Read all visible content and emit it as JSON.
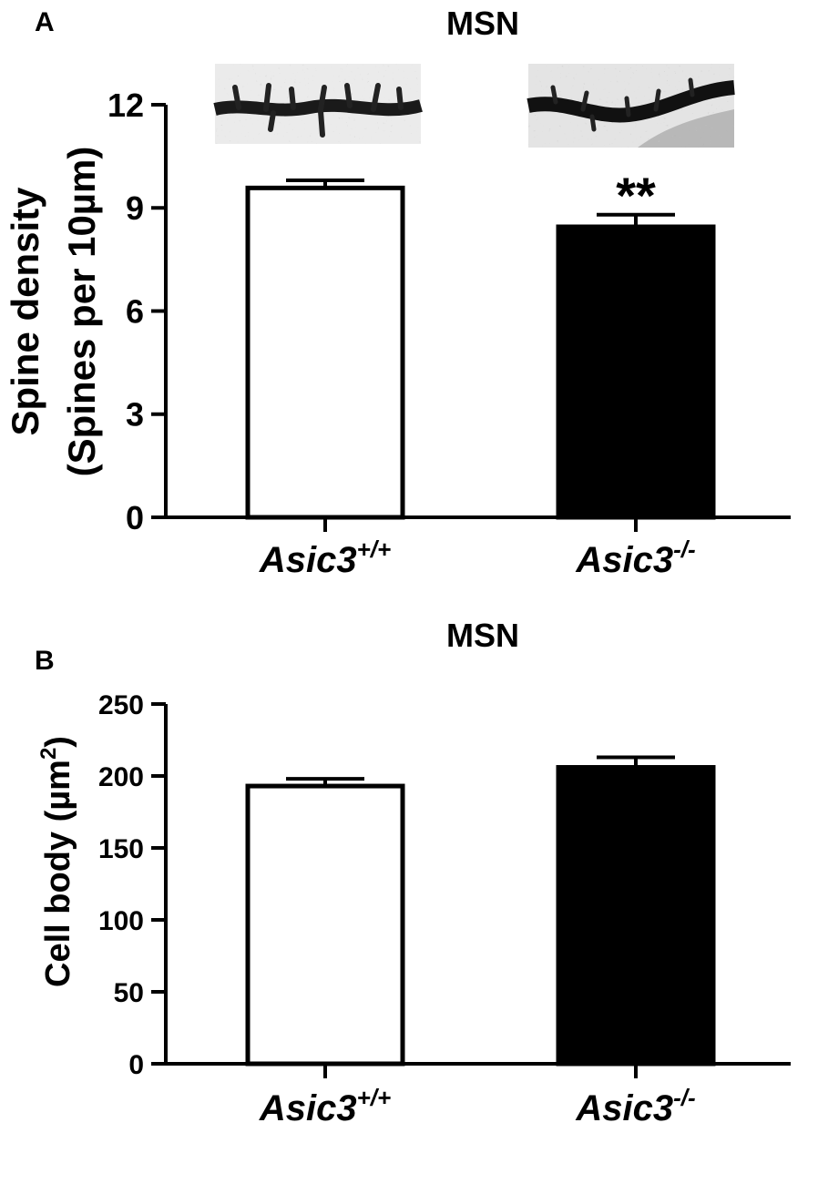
{
  "chart_data": [
    {
      "type": "bar",
      "panel_label": "A",
      "title": "MSN",
      "ylabel_line1": "Spine density",
      "ylabel_line2": "(Spines per 10µm)",
      "ylim": [
        0,
        12
      ],
      "yticks": [
        0,
        3,
        6,
        9,
        12
      ],
      "categories": [
        {
          "base": "Asic3",
          "sup": "+/+"
        },
        {
          "base": "Asic3",
          "sup": "-/-"
        }
      ],
      "values": [
        9.58,
        8.45
      ],
      "errors": [
        0.22,
        0.35
      ],
      "bar_fill": [
        "#ffffff",
        "#000000"
      ],
      "annotations": [
        {
          "category_index": 1,
          "text": "**"
        }
      ],
      "insets": [
        "dendrite micrograph (Asic3+/+)",
        "dendrite micrograph (Asic3-/-)"
      ]
    },
    {
      "type": "bar",
      "panel_label": "B",
      "title": "MSN",
      "ylabel_base": "Cell body (µm",
      "ylabel_sup": "2",
      "ylabel_end": ")",
      "ylim": [
        0,
        250
      ],
      "yticks": [
        0,
        50,
        100,
        150,
        200,
        250
      ],
      "categories": [
        {
          "base": "Asic3",
          "sup": "+/+"
        },
        {
          "base": "Asic3",
          "sup": "-/-"
        }
      ],
      "values": [
        193,
        206
      ],
      "errors": [
        5,
        7
      ],
      "bar_fill": [
        "#ffffff",
        "#000000"
      ],
      "annotations": []
    }
  ]
}
